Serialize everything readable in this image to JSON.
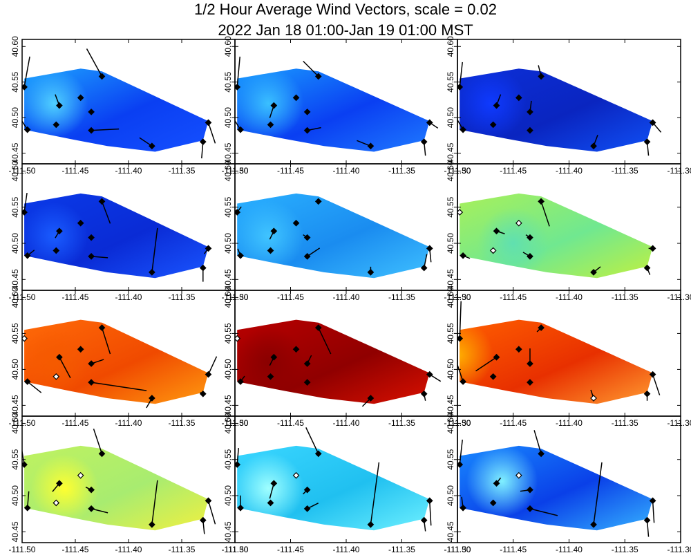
{
  "title": {
    "line1": "1/2 Hour Average Wind Vectors, scale =  0.02",
    "line2": "2022 Jan 18 01:00-Jan 19 01:00 MST"
  },
  "chart_data": {
    "type": "multi-panel wind vector map",
    "layout": {
      "rows": 4,
      "cols": 3
    },
    "x_range": [
      -111.5,
      -111.3
    ],
    "y_range": [
      40.435,
      40.61
    ],
    "x_tick_values": [
      -111.5,
      -111.45,
      -111.4,
      -111.35,
      -111.3
    ],
    "x_tick_labels": [
      "-111.50",
      "-111.45",
      "-111.40",
      "-111.35",
      "-111.30"
    ],
    "y_tick_values": [
      40.45,
      40.5,
      40.55,
      40.6
    ],
    "y_tick_labels": [
      "40.45",
      "40.50",
      "40.55",
      "40.60"
    ],
    "domain_polygon": [
      [
        -111.498,
        40.555
      ],
      [
        -111.445,
        40.569
      ],
      [
        -111.425,
        40.565
      ],
      [
        -111.382,
        40.535
      ],
      [
        -111.325,
        40.495
      ],
      [
        -111.33,
        40.468
      ],
      [
        -111.375,
        40.452
      ],
      [
        -111.42,
        40.46
      ],
      [
        -111.455,
        40.47
      ],
      [
        -111.498,
        40.483
      ]
    ],
    "stations": [
      {
        "lon": -111.498,
        "lat": 40.543
      },
      {
        "lon": -111.495,
        "lat": 40.483
      },
      {
        "lon": -111.465,
        "lat": 40.517
      },
      {
        "lon": -111.468,
        "lat": 40.49
      },
      {
        "lon": -111.445,
        "lat": 40.528
      },
      {
        "lon": -111.425,
        "lat": 40.558
      },
      {
        "lon": -111.435,
        "lat": 40.508
      },
      {
        "lon": -111.435,
        "lat": 40.482
      },
      {
        "lon": -111.378,
        "lat": 40.46
      },
      {
        "lon": -111.33,
        "lat": 40.466
      },
      {
        "lon": -111.325,
        "lat": 40.493
      }
    ],
    "panels": [
      {
        "colors": [
          "#1da3ff",
          "#0a3ff2",
          "#1550ff"
        ],
        "hotspot": [
          -111.47,
          40.52
        ],
        "hot": "#50d0ff",
        "filled": [
          1,
          1,
          1,
          1,
          1,
          1,
          1,
          1,
          1,
          1,
          1
        ],
        "vectors": [
          [
            0,
            0.4,
            2.2
          ],
          [
            1,
            -0.5,
            0.8
          ],
          [
            2,
            -0.3,
            0.8
          ],
          [
            5,
            -1.1,
            2.0
          ],
          [
            7,
            2.0,
            0.1
          ],
          [
            8,
            -0.9,
            0.6
          ],
          [
            9,
            -0.1,
            -1.2
          ],
          [
            10,
            0.5,
            -1.5
          ]
        ]
      },
      {
        "colors": [
          "#1a9cff",
          "#0a3ff2",
          "#1f7aff"
        ],
        "hotspot": [
          -111.47,
          40.52
        ],
        "hot": "#3ac0ff",
        "filled": [
          1,
          1,
          1,
          1,
          1,
          1,
          1,
          1,
          1,
          1,
          1
        ],
        "vectors": [
          [
            0,
            0.2,
            2.2
          ],
          [
            1,
            -0.5,
            0.8
          ],
          [
            2,
            -0.3,
            -0.9
          ],
          [
            5,
            -1.1,
            1.1
          ],
          [
            7,
            1.0,
            0.2
          ],
          [
            8,
            -1.0,
            0.4
          ],
          [
            9,
            0.1,
            -1.0
          ],
          [
            10,
            0.6,
            -0.4
          ]
        ]
      },
      {
        "colors": [
          "#0c2fd8",
          "#0a25c0",
          "#1050f5"
        ],
        "hotspot": [
          -111.47,
          40.52
        ],
        "hot": "#0f3aff",
        "filled": [
          1,
          1,
          1,
          1,
          1,
          1,
          1,
          1,
          1,
          1,
          1
        ],
        "vectors": [
          [
            0,
            0.2,
            1.8
          ],
          [
            1,
            -0.4,
            0.7
          ],
          [
            2,
            0.3,
            0.8
          ],
          [
            5,
            -0.2,
            0.8
          ],
          [
            6,
            0.1,
            0.8
          ],
          [
            8,
            0.3,
            0.8
          ],
          [
            9,
            0.1,
            -1.0
          ],
          [
            10,
            0.6,
            -0.7
          ]
        ]
      },
      {
        "colors": [
          "#0a3ae8",
          "#0a2bd5",
          "#1a55ff"
        ],
        "hotspot": [
          -111.47,
          40.51
        ],
        "hot": "#1a5cff",
        "filled": [
          1,
          1,
          1,
          1,
          1,
          1,
          1,
          1,
          1,
          1,
          1
        ],
        "vectors": [
          [
            0,
            0.2,
            1.4
          ],
          [
            1,
            0.5,
            0.4
          ],
          [
            2,
            -0.3,
            -0.5
          ],
          [
            5,
            0.6,
            -1.6
          ],
          [
            7,
            1.2,
            -0.1
          ],
          [
            8,
            0.4,
            3.2
          ],
          [
            9,
            0.0,
            -1.0
          ],
          [
            10,
            -0.3,
            -0.4
          ]
        ]
      },
      {
        "colors": [
          "#2ab0ff",
          "#1a8cf0",
          "#3fc0ff"
        ],
        "hotspot": [
          -111.47,
          40.51
        ],
        "hot": "#40c4ff",
        "filled": [
          1,
          1,
          1,
          1,
          1,
          1,
          1,
          1,
          1,
          1,
          1
        ],
        "vectors": [
          [
            0,
            0.3,
            0.4
          ],
          [
            1,
            -0.2,
            0.5
          ],
          [
            2,
            -0.3,
            -0.6
          ],
          [
            6,
            -0.3,
            0.2
          ],
          [
            7,
            0.9,
            0.6
          ],
          [
            8,
            0.0,
            0.4
          ],
          [
            9,
            0.2,
            1.0
          ],
          [
            10,
            0.1,
            -1.0
          ]
        ]
      },
      {
        "colors": [
          "#a8f05a",
          "#70e890",
          "#c0f040"
        ],
        "hotspot": [
          -111.45,
          40.5
        ],
        "hot": "#60e0b0",
        "filled": [
          0,
          1,
          1,
          0,
          0,
          1,
          1,
          1,
          1,
          1,
          1
        ],
        "vectors": [
          [
            0,
            0.0,
            0.0
          ],
          [
            1,
            0.5,
            -0.2
          ],
          [
            2,
            0.6,
            -0.2
          ],
          [
            5,
            0.6,
            -1.8
          ],
          [
            6,
            -0.3,
            0.2
          ],
          [
            7,
            -0.5,
            0.3
          ],
          [
            8,
            0.5,
            0.4
          ],
          [
            9,
            0.2,
            -0.5
          ],
          [
            10,
            -0.3,
            0.0
          ]
        ]
      },
      {
        "colors": [
          "#ff6a08",
          "#f04a00",
          "#ff9a10"
        ],
        "hotspot": [
          -111.47,
          40.51
        ],
        "hot": "#f55a00",
        "filled": [
          0,
          1,
          1,
          0,
          1,
          1,
          1,
          1,
          1,
          1,
          1
        ],
        "vectors": [
          [
            1,
            1.0,
            -0.8
          ],
          [
            2,
            0.8,
            -1.5
          ],
          [
            5,
            0.6,
            -1.9
          ],
          [
            6,
            0.9,
            0.3
          ],
          [
            7,
            4.0,
            -0.6
          ],
          [
            8,
            -0.4,
            -0.7
          ],
          [
            9,
            -0.2,
            0.1
          ],
          [
            10,
            0.6,
            1.3
          ]
        ]
      },
      {
        "colors": [
          "#b80000",
          "#900000",
          "#d81000"
        ],
        "hotspot": [
          -111.47,
          40.51
        ],
        "hot": "#8a0000",
        "filled": [
          0,
          1,
          1,
          1,
          1,
          1,
          1,
          1,
          1,
          1,
          1
        ],
        "vectors": [
          [
            1,
            0.3,
            0.4
          ],
          [
            2,
            -0.3,
            -0.6
          ],
          [
            5,
            0.9,
            -1.9
          ],
          [
            6,
            0.3,
            0.6
          ],
          [
            7,
            0.0,
            0.0
          ],
          [
            8,
            -0.6,
            -0.6
          ],
          [
            9,
            0.1,
            -0.5
          ],
          [
            10,
            0.8,
            -0.5
          ]
        ]
      },
      {
        "colors": [
          "#ff5e00",
          "#e83000",
          "#ff9a30"
        ],
        "hotspot": [
          -111.5,
          40.52
        ],
        "hot": "#ffb000",
        "filled": [
          1,
          1,
          1,
          1,
          1,
          1,
          1,
          1,
          0,
          1,
          1
        ],
        "vectors": [
          [
            0,
            0.1,
            2.7
          ],
          [
            1,
            -0.4,
            1.2
          ],
          [
            2,
            -1.5,
            -1.0
          ],
          [
            5,
            -0.3,
            -0.3
          ],
          [
            6,
            0.0,
            1.1
          ],
          [
            7,
            0.0,
            0.0
          ],
          [
            8,
            -0.2,
            0.6
          ],
          [
            9,
            0.0,
            -0.5
          ],
          [
            10,
            0.5,
            -1.5
          ]
        ]
      },
      {
        "colors": [
          "#bff260",
          "#a8ec70",
          "#f0f040"
        ],
        "hotspot": [
          -111.46,
          40.51
        ],
        "hot": "#ffff30",
        "filled": [
          1,
          1,
          1,
          0,
          0,
          1,
          1,
          1,
          1,
          1,
          1
        ],
        "vectors": [
          [
            0,
            -0.3,
            1.8
          ],
          [
            1,
            0.1,
            1.2
          ],
          [
            2,
            -0.5,
            -0.6
          ],
          [
            5,
            -0.6,
            1.8
          ],
          [
            6,
            -0.4,
            0.2
          ],
          [
            7,
            1.2,
            -0.3
          ],
          [
            8,
            0.4,
            3.2
          ],
          [
            9,
            0.1,
            -1.0
          ],
          [
            10,
            0.5,
            -1.7
          ]
        ]
      },
      {
        "colors": [
          "#3ad6ff",
          "#20c0f0",
          "#6ef0ff"
        ],
        "hotspot": [
          -111.47,
          40.51
        ],
        "hot": "#a0ffff",
        "filled": [
          1,
          1,
          1,
          1,
          0,
          1,
          1,
          1,
          1,
          1,
          1
        ],
        "vectors": [
          [
            0,
            0.1,
            1.2
          ],
          [
            1,
            0.0,
            0.9
          ],
          [
            2,
            -0.3,
            -1.1
          ],
          [
            5,
            -0.9,
            1.9
          ],
          [
            6,
            -0.3,
            -0.3
          ],
          [
            7,
            0.8,
            0.4
          ],
          [
            8,
            0.6,
            4.5
          ],
          [
            9,
            0.1,
            -0.8
          ],
          [
            10,
            0.1,
            -1.8
          ]
        ]
      },
      {
        "colors": [
          "#1888ff",
          "#0a40e8",
          "#35b0ff"
        ],
        "hotspot": [
          -111.46,
          40.52
        ],
        "hot": "#80f0ff",
        "filled": [
          1,
          1,
          1,
          1,
          0,
          1,
          1,
          1,
          1,
          1,
          1
        ],
        "vectors": [
          [
            0,
            0.2,
            1.8
          ],
          [
            1,
            -0.1,
            0.8
          ],
          [
            2,
            0.3,
            0.4
          ],
          [
            5,
            -0.5,
            1.7
          ],
          [
            6,
            -0.7,
            -0.1
          ],
          [
            7,
            2.0,
            -0.5
          ],
          [
            8,
            0.6,
            4.5
          ],
          [
            9,
            0.1,
            -1.2
          ],
          [
            10,
            0.1,
            -1.6
          ]
        ]
      }
    ]
  }
}
